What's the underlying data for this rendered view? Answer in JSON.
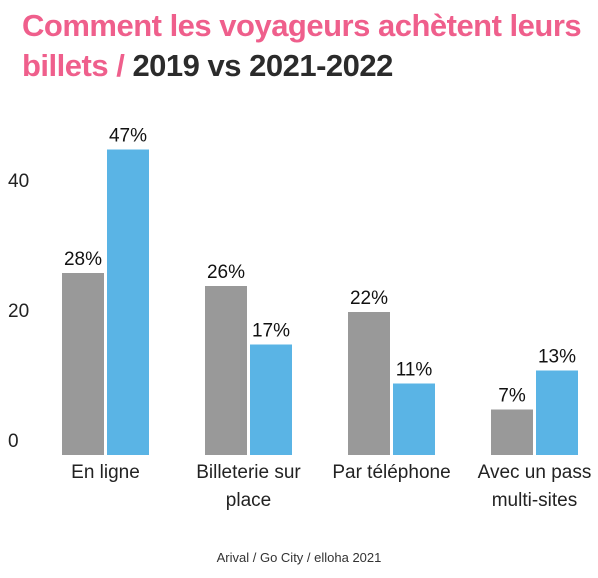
{
  "chart_data": {
    "type": "bar",
    "title": "Comment les voyageurs achètent leurs billets /",
    "title_highlight": "2019 vs 2021-2022",
    "source": "Arival / Go City / elloha 2021",
    "categories": [
      "En ligne",
      "Billeterie sur place",
      "Par téléphone",
      "Avec un pass multi-sites"
    ],
    "series": [
      {
        "color": "#999999",
        "values": [
          28,
          26,
          22,
          7
        ],
        "value_labels": [
          "28%",
          "26%",
          "22%",
          "7%"
        ]
      },
      {
        "color": "#5ab4e5",
        "values": [
          47,
          17,
          11,
          13
        ],
        "value_labels": [
          "47%",
          "17%",
          "11%",
          "13%"
        ]
      }
    ],
    "ylim": [
      0,
      52
    ],
    "yticks": [
      0,
      20,
      40
    ],
    "grid": false
  }
}
